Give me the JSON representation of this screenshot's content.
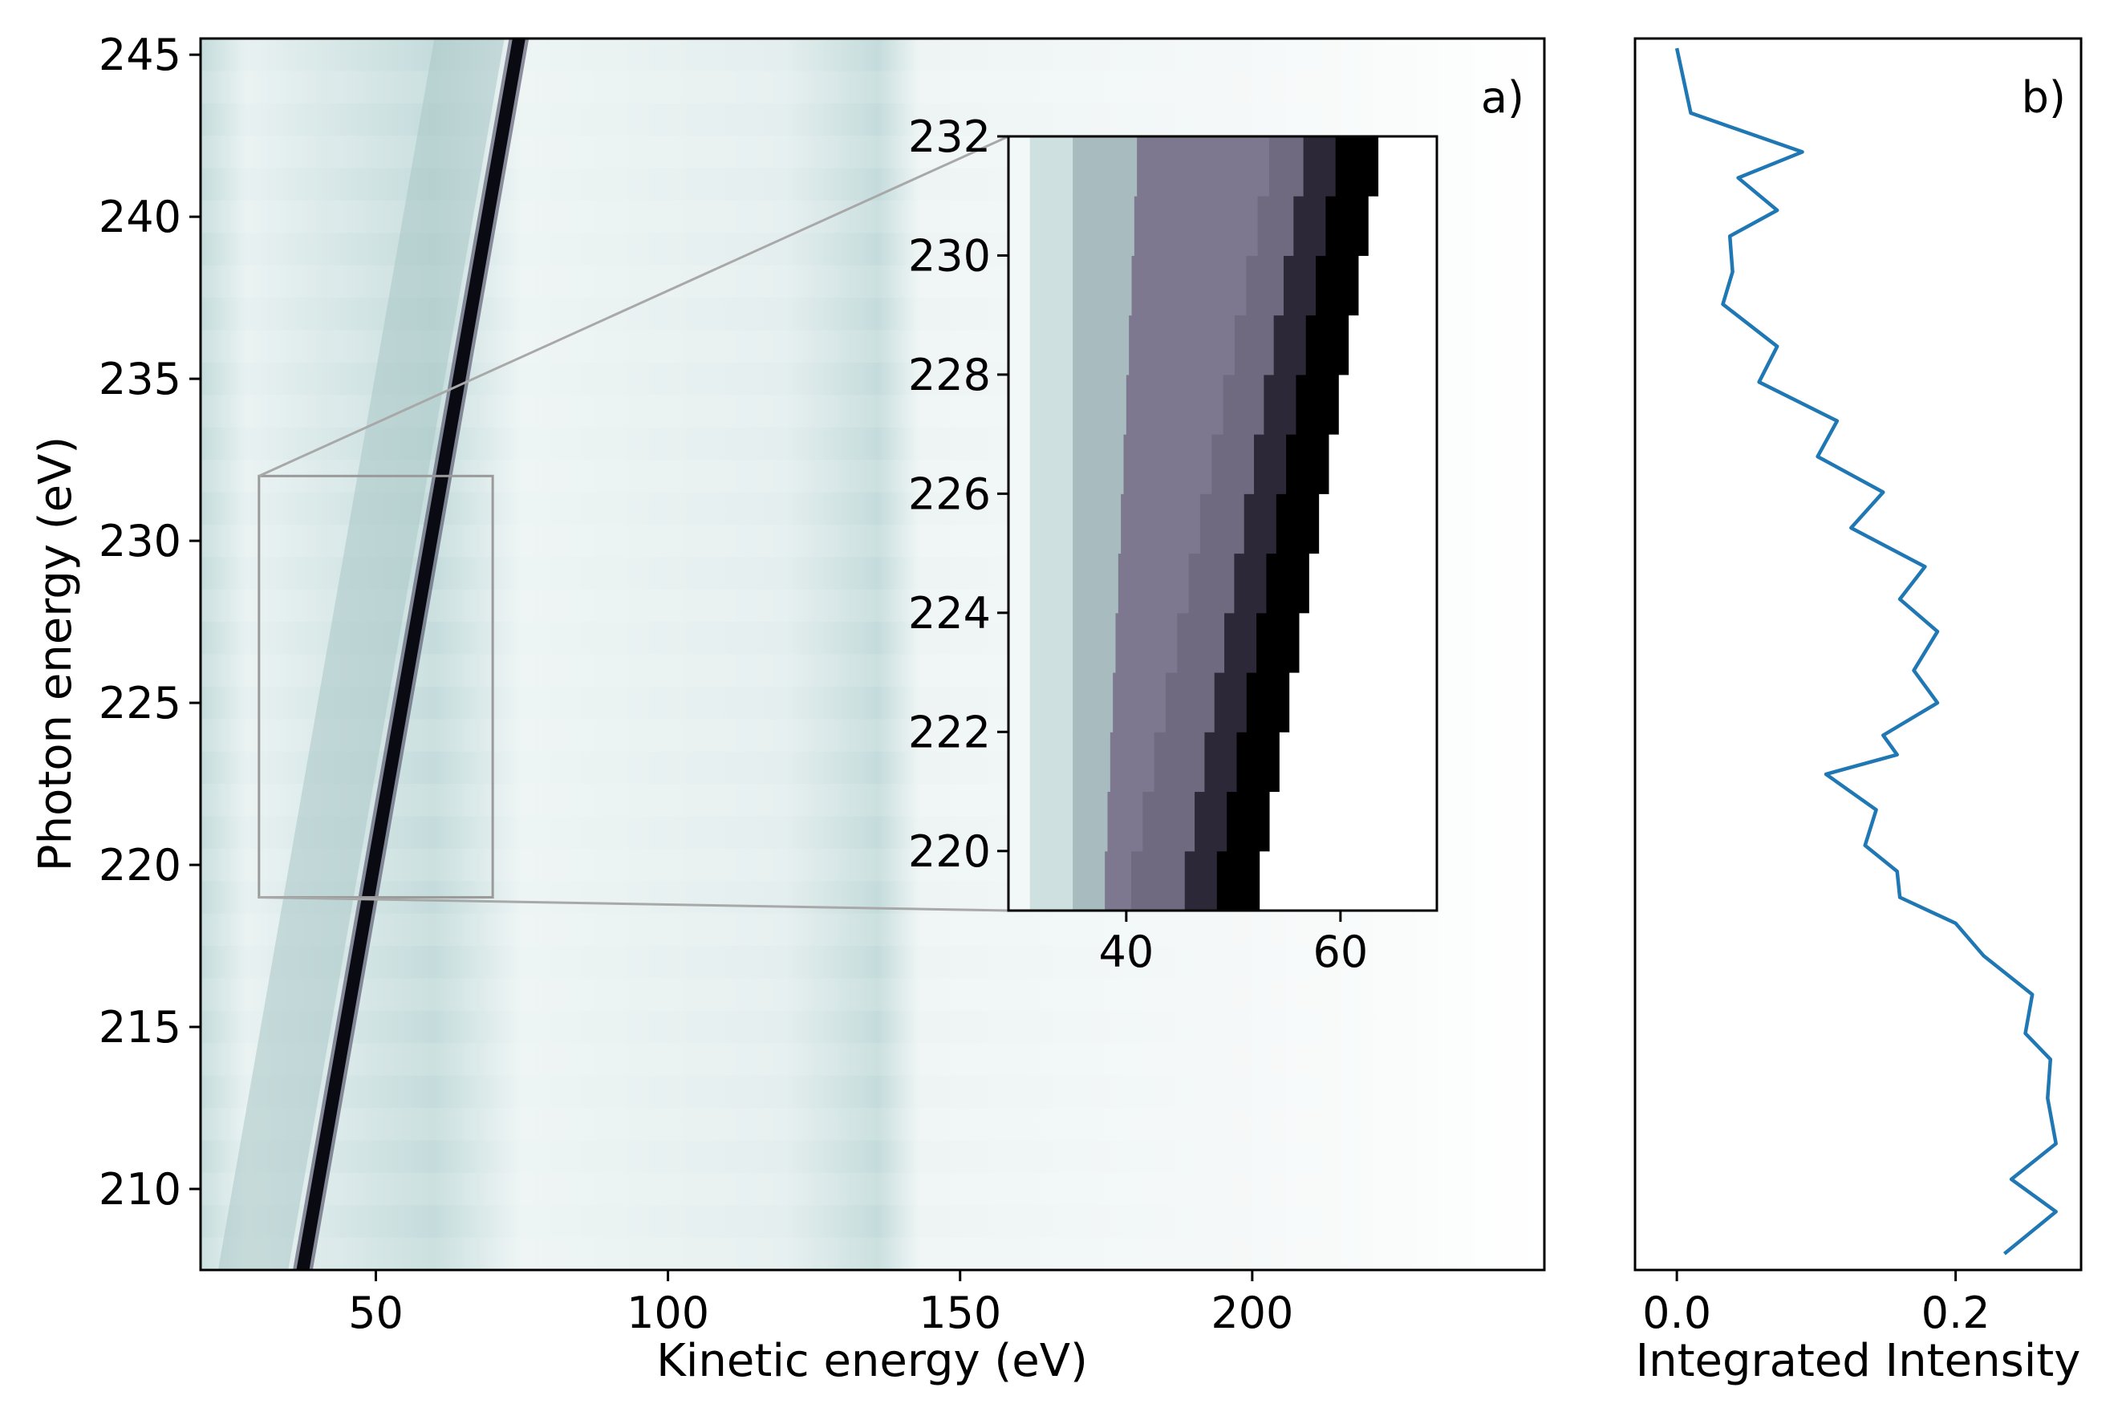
{
  "chart_data": [
    {
      "type": "heatmap",
      "panel_label": "a)",
      "xlabel": "Kinetic energy (eV)",
      "ylabel": "Photon energy (eV)",
      "xlim": [
        20,
        250
      ],
      "ylim": [
        207.5,
        245.5
      ],
      "xticks": [
        50,
        100,
        150,
        200
      ],
      "yticks": [
        210,
        215,
        220,
        225,
        230,
        235,
        240,
        245
      ],
      "colormap": [
        "#ffffff",
        "#c5dcdc",
        "#6f6a80",
        "#000000"
      ],
      "main_peak_line": {
        "x_at_y_min": 37,
        "x_at_y_max": 74,
        "y_min": 207.5,
        "y_max": 245.5
      },
      "zoom_region": {
        "x": [
          30,
          70
        ],
        "y": [
          219,
          232
        ]
      },
      "inset": {
        "xlim": [
          29,
          69
        ],
        "ylim": [
          219,
          232
        ],
        "xticks": [
          40,
          60
        ],
        "yticks": [
          220,
          222,
          224,
          226,
          228,
          230,
          232
        ],
        "edge_at_y_min": 52,
        "edge_at_y_max": 64
      }
    },
    {
      "type": "line",
      "panel_label": "b)",
      "xlabel": "Integrated Intensity",
      "xlim": [
        -0.03,
        0.29
      ],
      "ylim": [
        207.5,
        245.5
      ],
      "xticks": [
        0.0,
        0.2
      ],
      "xtick_labels": [
        "0.0",
        "0.2"
      ],
      "color": "#1f77b4",
      "x": [
        0.235,
        0.272,
        0.24,
        0.272,
        0.266,
        0.268,
        0.25,
        0.255,
        0.22,
        0.2,
        0.16,
        0.158,
        0.135,
        0.143,
        0.107,
        0.158,
        0.148,
        0.187,
        0.17,
        0.187,
        0.16,
        0.178,
        0.125,
        0.148,
        0.101,
        0.115,
        0.059,
        0.072,
        0.033,
        0.04,
        0.038,
        0.072,
        0.044,
        0.09,
        0.01,
        0.0
      ],
      "y": [
        208.0,
        209.3,
        210.3,
        211.4,
        212.8,
        214.0,
        214.8,
        216.0,
        217.2,
        218.2,
        219.0,
        219.8,
        220.6,
        221.7,
        222.8,
        223.4,
        224.0,
        225.0,
        226.0,
        227.2,
        228.2,
        229.2,
        230.4,
        231.5,
        232.6,
        233.7,
        234.9,
        236.0,
        237.3,
        238.3,
        239.4,
        240.2,
        241.2,
        242.0,
        243.2,
        245.2
      ]
    }
  ]
}
